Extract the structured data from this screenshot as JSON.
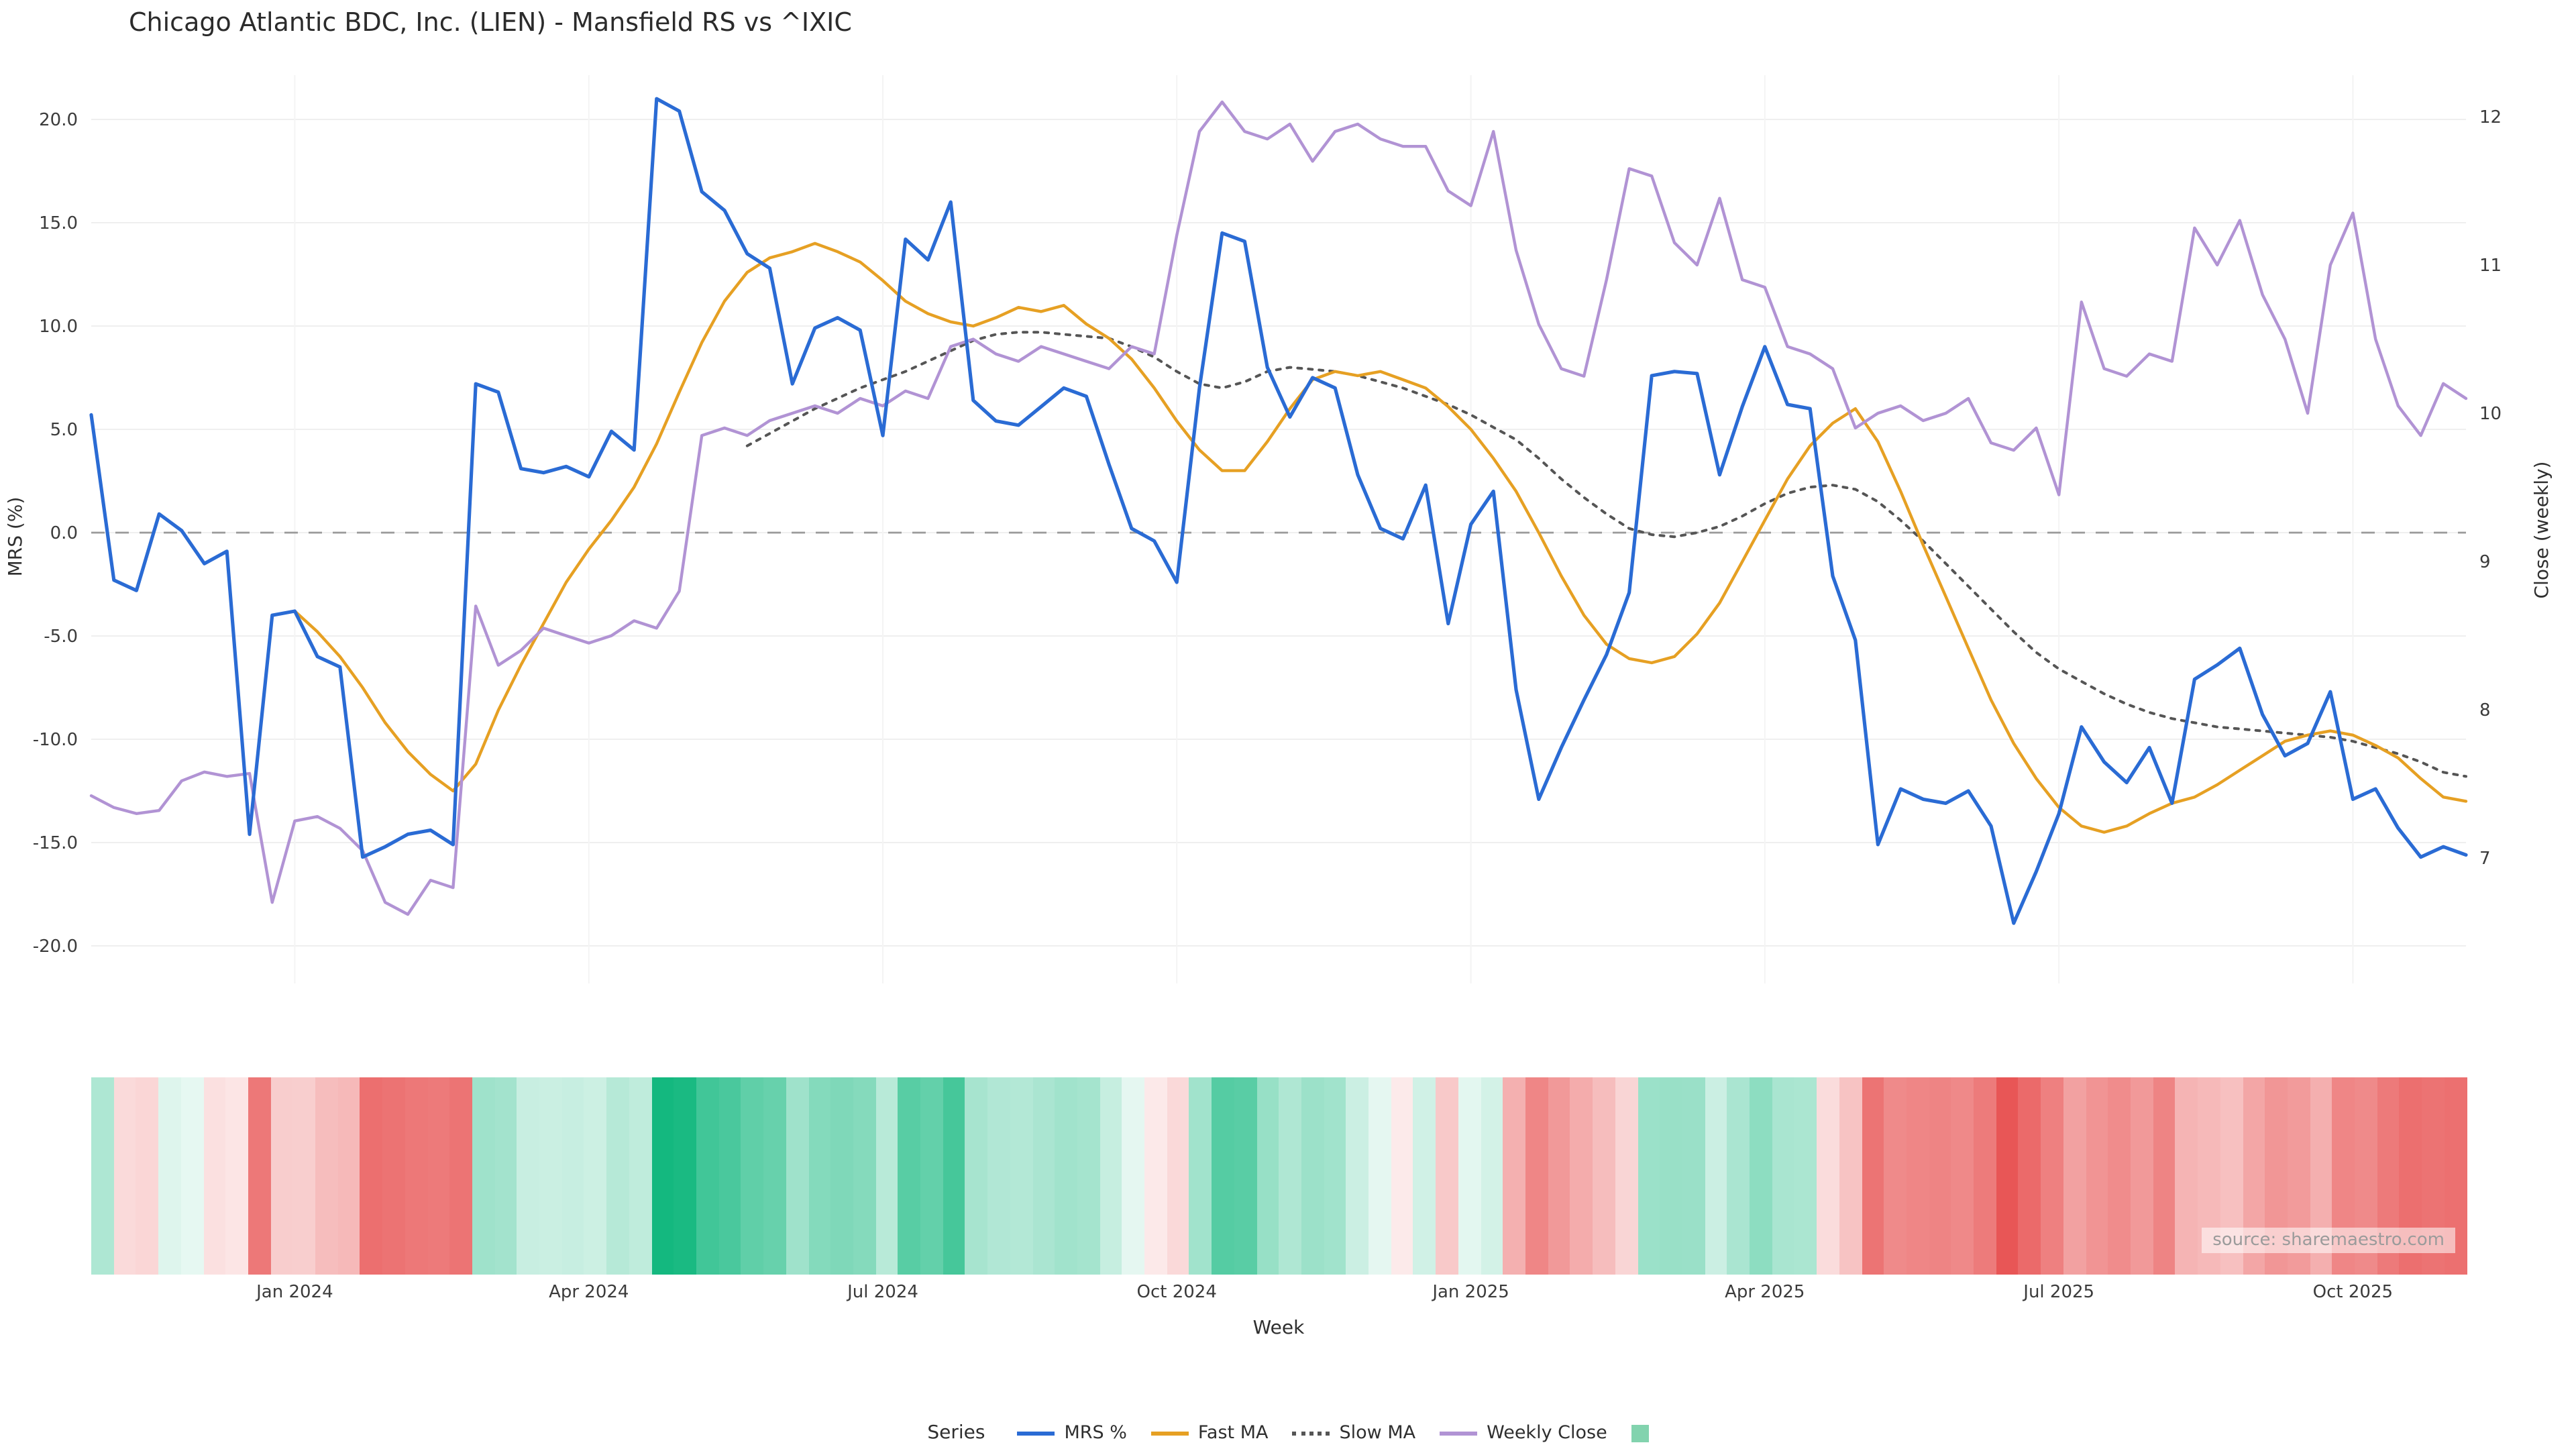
{
  "title": "Chicago Atlantic BDC, Inc. (LIEN) - Mansfield RS vs ^IXIC",
  "source_note": "source: sharemaestro.com",
  "x_axis_title": "Week",
  "legend": {
    "label": "Series",
    "items": [
      {
        "name": "MRS %",
        "slug": "mrs",
        "color": "#2a6bd4",
        "style": "solid"
      },
      {
        "name": "Fast MA",
        "slug": "fast-ma",
        "color": "#e6a023",
        "style": "solid"
      },
      {
        "name": "Slow MA",
        "slug": "slow-ma",
        "color": "#555555",
        "style": "dotted"
      },
      {
        "name": "Weekly Close",
        "slug": "weekly-close",
        "color": "#b193d4",
        "style": "solid"
      },
      {
        "name": "",
        "slug": "heatmap",
        "color": "#82d3ae",
        "style": "square"
      }
    ]
  },
  "chart_data": {
    "type": "line",
    "title": "Chicago Atlantic BDC, Inc. (LIEN) - Mansfield RS vs ^IXIC",
    "xlabel": "Week",
    "ylabel_left": "MRS (%)",
    "ylabel_right": "Close (weekly)",
    "weeks": 106,
    "x_tick_labels": [
      "Jan 2024",
      "Apr 2024",
      "Jul 2024",
      "Oct 2024",
      "Jan 2025",
      "Apr 2025",
      "Jul 2025",
      "Oct 2025"
    ],
    "x_tick_indices": [
      9,
      22,
      35,
      48,
      61,
      74,
      87,
      100
    ],
    "y_left_ticks": [
      20,
      15,
      10,
      5,
      0,
      -5,
      -10,
      -15,
      -20
    ],
    "y_right_ticks": [
      12,
      11,
      10,
      9,
      8,
      7
    ],
    "y_left_range": [
      -21.8,
      22.1
    ],
    "y_right_range": [
      6.15,
      12.3
    ],
    "grid": true,
    "zero_line": true,
    "legend_position": "bottom-center",
    "series": [
      {
        "name": "MRS %",
        "axis": "left",
        "color": "#2a6bd4",
        "style": "solid",
        "values": [
          5.7,
          -2.3,
          -2.8,
          0.9,
          0.1,
          -1.5,
          -0.9,
          -14.6,
          -4.0,
          -3.8,
          -6.0,
          -6.5,
          -15.7,
          -15.2,
          -14.6,
          -14.4,
          -15.1,
          7.2,
          6.8,
          3.1,
          2.9,
          3.2,
          2.7,
          4.9,
          4.0,
          21.0,
          20.4,
          16.5,
          15.6,
          13.5,
          12.8,
          7.2,
          9.9,
          10.4,
          9.8,
          4.7,
          14.2,
          13.2,
          16.0,
          6.4,
          5.4,
          5.2,
          6.1,
          7.0,
          6.6,
          3.3,
          0.2,
          -0.4,
          -2.4,
          7.0,
          14.5,
          14.1,
          8.0,
          5.6,
          7.5,
          7.0,
          2.8,
          0.2,
          -0.3,
          2.3,
          -4.4,
          0.4,
          2.0,
          -7.6,
          -12.9,
          -10.4,
          -8.1,
          -5.9,
          -2.9,
          7.6,
          7.8,
          7.7,
          2.8,
          6.1,
          9.0,
          6.2,
          6.0,
          -2.1,
          -5.2,
          -15.1,
          -12.4,
          -12.9,
          -13.1,
          -12.5,
          -14.2,
          -18.9,
          -16.4,
          -13.6,
          -9.4,
          -11.1,
          -12.1,
          -10.4,
          -13.1,
          -7.1,
          -6.4,
          -5.6,
          -8.8,
          -10.8,
          -10.2,
          -7.7,
          -12.9,
          -12.4,
          -14.3,
          -15.7,
          -15.2,
          -15.6
        ]
      },
      {
        "name": "Fast MA",
        "axis": "left",
        "color": "#e6a023",
        "style": "solid",
        "values": [
          null,
          null,
          null,
          null,
          null,
          null,
          null,
          null,
          null,
          -3.8,
          -4.8,
          -6.0,
          -7.5,
          -9.2,
          -10.6,
          -11.7,
          -12.5,
          -11.2,
          -8.6,
          -6.4,
          -4.4,
          -2.4,
          -0.8,
          0.6,
          2.2,
          4.3,
          6.8,
          9.2,
          11.2,
          12.6,
          13.3,
          13.6,
          14.0,
          13.6,
          13.1,
          12.2,
          11.2,
          10.6,
          10.2,
          10.0,
          10.4,
          10.9,
          10.7,
          11.0,
          10.1,
          9.4,
          8.4,
          7.0,
          5.4,
          4.0,
          3.0,
          3.0,
          4.4,
          6.0,
          7.4,
          7.8,
          7.6,
          7.8,
          7.4,
          7.0,
          6.1,
          5.0,
          3.6,
          2.0,
          0.0,
          -2.1,
          -4.0,
          -5.4,
          -6.1,
          -6.3,
          -6.0,
          -4.9,
          -3.4,
          -1.4,
          0.6,
          2.6,
          4.2,
          5.3,
          6.0,
          4.4,
          2.0,
          -0.6,
          -3.1,
          -5.6,
          -8.1,
          -10.2,
          -11.9,
          -13.3,
          -14.2,
          -14.5,
          -14.2,
          -13.6,
          -13.1,
          -12.8,
          -12.2,
          -11.5,
          -10.8,
          -10.1,
          -9.8,
          -9.6,
          -9.8,
          -10.3,
          -10.9,
          -11.9,
          -12.8,
          -13.0
        ]
      },
      {
        "name": "Slow MA",
        "axis": "left",
        "color": "#555555",
        "style": "dotted",
        "values": [
          null,
          null,
          null,
          null,
          null,
          null,
          null,
          null,
          null,
          null,
          null,
          null,
          null,
          null,
          null,
          null,
          null,
          null,
          null,
          null,
          null,
          null,
          null,
          null,
          null,
          null,
          null,
          null,
          null,
          4.2,
          4.8,
          5.4,
          6.0,
          6.5,
          7.0,
          7.4,
          7.8,
          8.3,
          8.8,
          9.3,
          9.6,
          9.7,
          9.7,
          9.6,
          9.5,
          9.4,
          9.0,
          8.5,
          7.8,
          7.2,
          7.0,
          7.3,
          7.8,
          8.0,
          7.9,
          7.8,
          7.6,
          7.3,
          7.0,
          6.6,
          6.2,
          5.7,
          5.1,
          4.5,
          3.6,
          2.6,
          1.7,
          0.9,
          0.2,
          -0.1,
          -0.2,
          0.0,
          0.3,
          0.8,
          1.4,
          1.9,
          2.2,
          2.3,
          2.1,
          1.5,
          0.6,
          -0.4,
          -1.5,
          -2.6,
          -3.7,
          -4.8,
          -5.8,
          -6.6,
          -7.2,
          -7.8,
          -8.3,
          -8.7,
          -9.0,
          -9.2,
          -9.4,
          -9.5,
          -9.6,
          -9.7,
          -9.8,
          -9.9,
          -10.1,
          -10.4,
          -10.7,
          -11.1,
          -11.6,
          -11.8
        ]
      },
      {
        "name": "Weekly Close",
        "axis": "right",
        "color": "#b193d4",
        "style": "solid",
        "values": [
          7.42,
          7.34,
          7.3,
          7.32,
          7.52,
          7.58,
          7.55,
          7.57,
          6.7,
          7.25,
          7.28,
          7.2,
          7.05,
          6.7,
          6.62,
          6.85,
          6.8,
          8.7,
          8.3,
          8.4,
          8.55,
          8.5,
          8.45,
          8.5,
          8.6,
          8.55,
          8.8,
          9.85,
          9.9,
          9.85,
          9.95,
          10.0,
          10.05,
          10.0,
          10.1,
          10.05,
          10.15,
          10.1,
          10.45,
          10.5,
          10.4,
          10.35,
          10.45,
          10.4,
          10.35,
          10.3,
          10.45,
          10.4,
          11.2,
          11.9,
          12.1,
          11.9,
          11.85,
          11.95,
          11.7,
          11.9,
          11.95,
          11.85,
          11.8,
          11.8,
          11.5,
          11.4,
          11.9,
          11.1,
          10.6,
          10.3,
          10.25,
          10.9,
          11.65,
          11.6,
          11.15,
          11.0,
          11.45,
          10.9,
          10.85,
          10.45,
          10.4,
          10.3,
          9.9,
          10.0,
          10.05,
          9.95,
          10.0,
          10.1,
          9.8,
          9.75,
          9.9,
          9.45,
          10.75,
          10.3,
          10.25,
          10.4,
          10.35,
          11.25,
          11.0,
          11.3,
          10.8,
          10.5,
          10.0,
          11.0,
          11.35,
          10.5,
          10.05,
          9.85,
          10.2,
          10.1
        ]
      }
    ],
    "heatmap": {
      "derived_from": "MRS %",
      "positive_color": "#14b87f",
      "negative_color": "#e64545",
      "max_abs": 21
    }
  }
}
